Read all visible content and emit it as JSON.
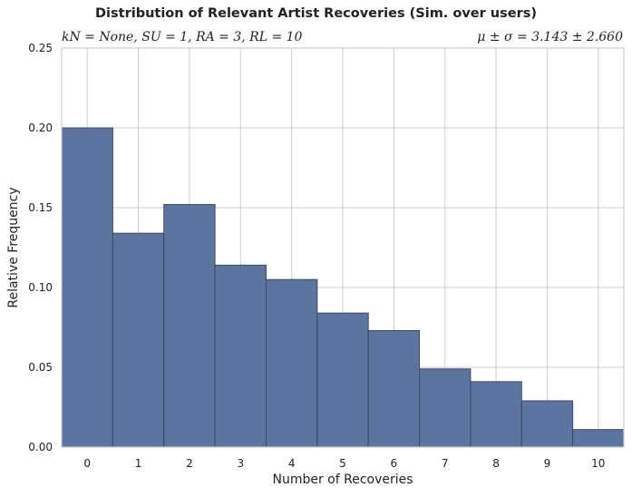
{
  "chart_data": {
    "type": "bar",
    "title": "Distribution of Relevant Artist Recoveries (Sim. over users)",
    "subtitle_left": "kN = None, SU = 1, RA = 3, RL = 10",
    "subtitle_right": "μ ± σ = 3.143 ± 2.660",
    "xlabel": "Number of Recoveries",
    "ylabel": "Relative Frequency",
    "categories": [
      "0",
      "1",
      "2",
      "3",
      "4",
      "5",
      "6",
      "7",
      "8",
      "9",
      "10"
    ],
    "values": [
      0.2,
      0.134,
      0.152,
      0.114,
      0.105,
      0.084,
      0.073,
      0.049,
      0.041,
      0.029,
      0.011
    ],
    "ylim": [
      0,
      0.25
    ],
    "yticks": [
      "0.00",
      "0.05",
      "0.10",
      "0.15",
      "0.20",
      "0.25"
    ],
    "ytick_values": [
      0,
      0.05,
      0.1,
      0.15,
      0.2,
      0.25
    ],
    "grid": true,
    "bar_color": "#5b74a0",
    "bar_edge_color": "#3a4a66",
    "grid_color": "#cccccc"
  }
}
